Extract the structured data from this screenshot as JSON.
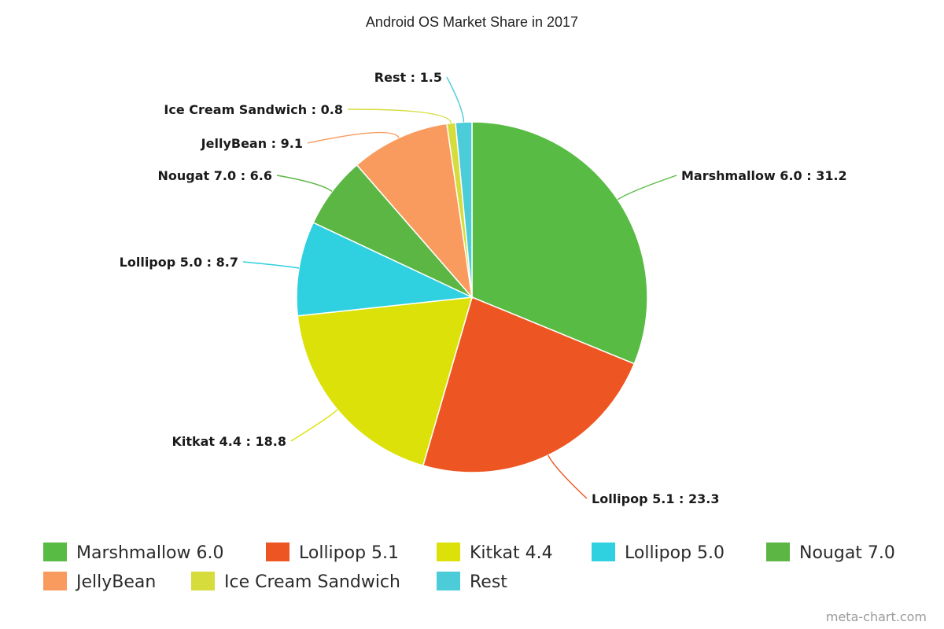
{
  "chart_data": {
    "type": "pie",
    "title": "Android OS Market Share in 2017",
    "legend_position": "bottom",
    "start_angle_deg": 0,
    "direction": "clockwise",
    "slices": [
      {
        "label": "Marshmallow 6.0",
        "value": 31.2,
        "color": "#58bb43"
      },
      {
        "label": "Lollipop 5.1",
        "value": 23.3,
        "color": "#ed5622"
      },
      {
        "label": "Kitkat 4.4",
        "value": 18.8,
        "color": "#dce10a"
      },
      {
        "label": "Lollipop 5.0",
        "value": 8.7,
        "color": "#2fd0e0"
      },
      {
        "label": "Nougat 7.0",
        "value": 6.6,
        "color": "#5bb644"
      },
      {
        "label": "JellyBean",
        "value": 9.1,
        "color": "#f99b5e"
      },
      {
        "label": "Ice Cream Sandwich",
        "value": 0.8,
        "color": "#d5dc3c"
      },
      {
        "label": "Rest",
        "value": 1.5,
        "color": "#4ccbd9"
      }
    ]
  },
  "credit": "meta-chart.com"
}
